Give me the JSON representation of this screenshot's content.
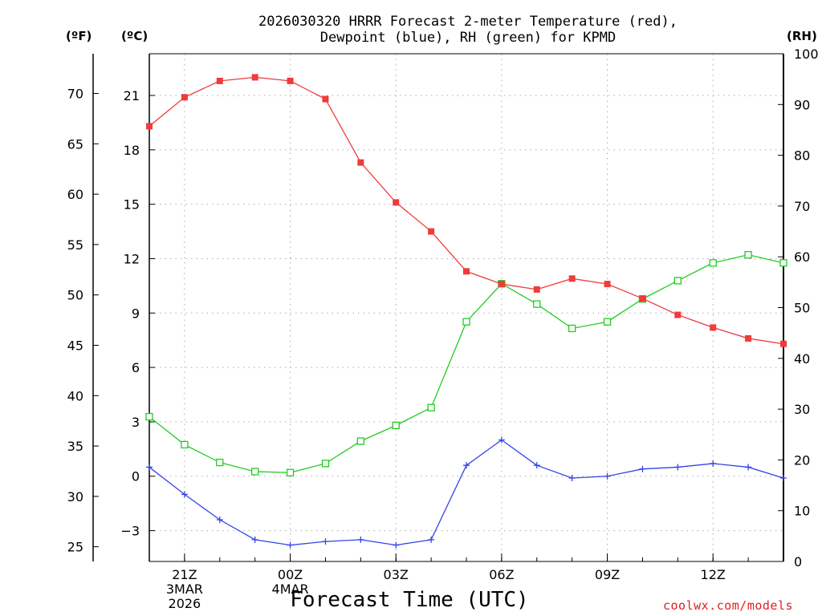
{
  "title": {
    "line1": "2026030320 HRRR Forecast 2-meter Temperature (red),",
    "line2": "Dewpoint (blue), RH (green) for KPMD"
  },
  "units": {
    "f": "(ºF)",
    "c": "(ºC)",
    "rh": "(RH)"
  },
  "xaxis_label": "Forecast Time (UTC)",
  "credit": "coolwx.com/models",
  "colors": {
    "temp": "#ef3b3b",
    "dewpoint": "#3344e6",
    "rh": "#22cc22",
    "grid": "#aaaaaa"
  },
  "chart_data": {
    "type": "line",
    "x_hours": [
      0,
      1,
      2,
      3,
      4,
      5,
      6,
      7,
      8,
      9,
      10,
      11,
      12,
      13,
      14,
      15,
      16,
      17,
      18
    ],
    "series": [
      {
        "name": "Temperature",
        "units": "C",
        "values": [
          19.3,
          20.9,
          21.8,
          22.0,
          21.8,
          20.8,
          17.3,
          15.1,
          13.5,
          11.3,
          10.6,
          10.3,
          10.9,
          10.6,
          9.8,
          8.9,
          8.2,
          7.6,
          7.3
        ]
      },
      {
        "name": "Dewpoint",
        "units": "C",
        "values": [
          0.5,
          -1.0,
          -2.4,
          -3.5,
          -3.8,
          -3.6,
          -3.5,
          -3.8,
          -3.5,
          0.6,
          2.0,
          0.6,
          -0.1,
          0.0,
          0.4,
          0.5,
          0.7,
          0.5,
          -0.1
        ]
      },
      {
        "name": "RH",
        "units": "%",
        "values": [
          28.5,
          23,
          19.5,
          17.7,
          17.5,
          19.3,
          23.7,
          26.8,
          30.3,
          47.2,
          54.7,
          50.7,
          45.9,
          47.2,
          51.7,
          55.3,
          58.8,
          60.4,
          58.8
        ]
      }
    ],
    "x_ticks": [
      {
        "hour": 1,
        "lines": [
          "21Z",
          "3MAR",
          "2026"
        ]
      },
      {
        "hour": 4,
        "lines": [
          "00Z",
          "4MAR"
        ]
      },
      {
        "hour": 7,
        "lines": [
          "03Z"
        ]
      },
      {
        "hour": 10,
        "lines": [
          "06Z"
        ]
      },
      {
        "hour": 13,
        "lines": [
          "09Z"
        ]
      },
      {
        "hour": 16,
        "lines": [
          "12Z"
        ]
      }
    ],
    "ylim_c": [
      -4.7,
      23.3
    ],
    "ylim_rh": [
      0,
      100
    ],
    "yticks_c": [
      "-3",
      "0",
      "3",
      "6",
      "9",
      "12",
      "15",
      "18",
      "21"
    ],
    "yticks_f": [
      "25",
      "30",
      "35",
      "40",
      "45",
      "50",
      "55",
      "60",
      "65",
      "70"
    ],
    "yticks_rh": [
      "0",
      "10",
      "20",
      "30",
      "40",
      "50",
      "60",
      "70",
      "80",
      "90",
      "100"
    ],
    "grid": true
  }
}
